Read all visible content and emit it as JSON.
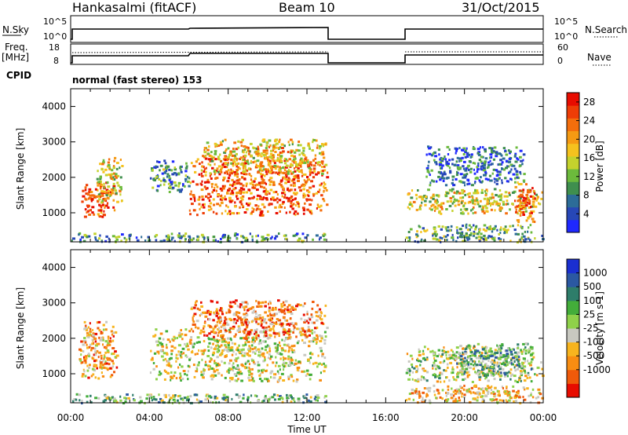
{
  "header": {
    "station": "Hankasalmi (fitACF)",
    "beam": "Beam 10",
    "date": "31/Oct/2015"
  },
  "labels": {
    "nsky": "N.Sky",
    "nsearch": "N.Search",
    "freq": "Freq.",
    "freq_unit": "[MHz]",
    "nave": "Nave",
    "cpid": "CPID",
    "mode": "normal (fast stereo) 153",
    "nsky_ticks": [
      "10^5",
      "10^0"
    ],
    "freq_ticks": [
      "18",
      "8"
    ],
    "nave_ticks": [
      "60",
      "0"
    ],
    "ylabel": "Slant Range [km]",
    "xlabel": "Time UT"
  },
  "colors": {
    "power": [
      "#1f28ff",
      "#2747b7",
      "#2c6c98",
      "#3f8f4e",
      "#6cba3c",
      "#c4d22d",
      "#f5c21e",
      "#f59a13",
      "#f46e0c",
      "#ee3d06",
      "#e80c00"
    ],
    "velocity": [
      "#e80c00",
      "#f05a0a",
      "#f88d12",
      "#f7b41e",
      "#c8c8c0",
      "#8fd14a",
      "#43ad3a",
      "#2e7d6a",
      "#2b58a2",
      "#1a2fd0"
    ],
    "accent": "#000000"
  },
  "chart_data": [
    {
      "type": "heatmap",
      "title": "Power",
      "ylabel": "Slant Range [km]",
      "xlabel": "Time UT",
      "x_ticks": [
        "00:00",
        "04:00",
        "08:00",
        "12:00",
        "16:00",
        "20:00",
        "00:00"
      ],
      "xlim_hours": [
        0,
        24
      ],
      "y_ticks": [
        1000,
        2000,
        3000,
        4000
      ],
      "ylim_km": [
        180,
        4500
      ],
      "data_gap_hours": [
        13.0,
        17.0
      ],
      "colorbar": {
        "label": "Power [dB]",
        "ticks": [
          4,
          8,
          12,
          16,
          20,
          24,
          28
        ],
        "range": [
          0,
          30
        ]
      },
      "regions": [
        {
          "t": [
            0.5,
            2.2
          ],
          "r": [
            900,
            1900
          ],
          "level": 0.85
        },
        {
          "t": [
            1.3,
            2.6
          ],
          "r": [
            1300,
            2600
          ],
          "level": 0.55
        },
        {
          "t": [
            6.0,
            13.0
          ],
          "r": [
            950,
            2600
          ],
          "level": 0.8
        },
        {
          "t": [
            6.5,
            13.0
          ],
          "r": [
            2100,
            3100
          ],
          "level": 0.6
        },
        {
          "t": [
            0.0,
            13.0
          ],
          "r": [
            200,
            450
          ],
          "level": 0.3
        },
        {
          "t": [
            4.0,
            6.0
          ],
          "r": [
            1600,
            2500
          ],
          "level": 0.3
        },
        {
          "t": [
            17.0,
            24.0
          ],
          "r": [
            1000,
            1700
          ],
          "level": 0.55
        },
        {
          "t": [
            22.5,
            23.6
          ],
          "r": [
            700,
            1900
          ],
          "level": 0.8
        },
        {
          "t": [
            18.0,
            23.0
          ],
          "r": [
            1800,
            2900
          ],
          "level": 0.2
        },
        {
          "t": [
            17.0,
            24.0
          ],
          "r": [
            200,
            700
          ],
          "level": 0.35
        }
      ]
    },
    {
      "type": "heatmap",
      "title": "Velocity",
      "ylabel": "Slant Range [km]",
      "xlabel": "Time UT",
      "x_ticks": [
        "00:00",
        "04:00",
        "08:00",
        "12:00",
        "16:00",
        "20:00",
        "00:00"
      ],
      "xlim_hours": [
        0,
        24
      ],
      "y_ticks": [
        1000,
        2000,
        3000,
        4000
      ],
      "ylim_km": [
        180,
        4500
      ],
      "data_gap_hours": [
        13.0,
        17.0
      ],
      "colorbar": {
        "label": "Velocity [m s-1]",
        "ticks": [
          1000,
          500,
          100,
          25,
          -25,
          -100,
          -500,
          -1000
        ]
      },
      "regions": [
        {
          "t": [
            0.4,
            2.4
          ],
          "r": [
            900,
            2500
          ],
          "level": 0.3
        },
        {
          "t": [
            4.0,
            13.0
          ],
          "r": [
            800,
            2300
          ],
          "level": 0.45
        },
        {
          "t": [
            6.0,
            13.0
          ],
          "r": [
            2000,
            3100
          ],
          "level": 0.25
        },
        {
          "t": [
            0.0,
            13.0
          ],
          "r": [
            200,
            450
          ],
          "level": 0.6
        },
        {
          "t": [
            17.0,
            24.0
          ],
          "r": [
            800,
            1800
          ],
          "level": 0.5
        },
        {
          "t": [
            19.5,
            23.5
          ],
          "r": [
            1000,
            1900
          ],
          "level": 0.65
        },
        {
          "t": [
            17.0,
            24.0
          ],
          "r": [
            200,
            700
          ],
          "level": 0.35
        }
      ]
    }
  ]
}
